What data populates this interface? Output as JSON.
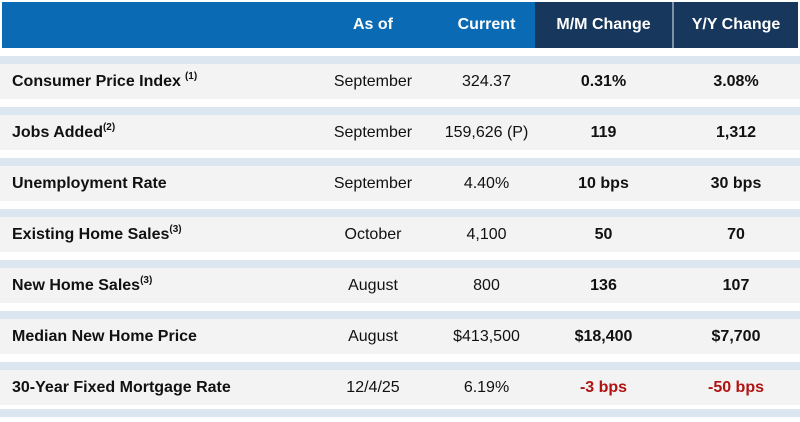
{
  "table": {
    "header": {
      "label": "",
      "as_of": "As of",
      "current": "Current",
      "mm": "M/M Change",
      "yy": "Y/Y Change"
    },
    "rows": [
      {
        "label": "Consumer Price Index",
        "footnote": "(1)",
        "footnote_gap": true,
        "as_of": "September",
        "current": "324.37",
        "mm": "0.31%",
        "yy": "3.08%",
        "negative": false
      },
      {
        "label": "Jobs Added",
        "footnote": "(2)",
        "footnote_gap": false,
        "as_of": "September",
        "current": "159,626 (P)",
        "mm": "119",
        "yy": "1,312",
        "negative": false
      },
      {
        "label": "Unemployment Rate",
        "footnote": "",
        "footnote_gap": false,
        "as_of": "September",
        "current": "4.40%",
        "mm": "10 bps",
        "yy": "30 bps",
        "negative": false
      },
      {
        "label": "Existing Home Sales",
        "footnote": "(3)",
        "footnote_gap": false,
        "as_of": "October",
        "current": "4,100",
        "mm": "50",
        "yy": "70",
        "negative": false
      },
      {
        "label": "New Home Sales",
        "footnote": "(3)",
        "footnote_gap": false,
        "as_of": "August",
        "current": "800",
        "mm": "136",
        "yy": "107",
        "negative": false
      },
      {
        "label": "Median New Home Price",
        "footnote": "",
        "footnote_gap": false,
        "as_of": "August",
        "current": "$413,500",
        "mm": "$18,400",
        "yy": "$7,700",
        "negative": false
      },
      {
        "label": "30-Year Fixed Mortgage Rate",
        "footnote": "",
        "footnote_gap": false,
        "as_of": "12/4/25",
        "current": "6.19%",
        "mm": "-3 bps",
        "yy": "-50 bps",
        "negative": true
      }
    ],
    "colors": {
      "header_blue": "#0a6ab4",
      "header_navy": "#17375d",
      "separator_light_blue": "#dce6f1",
      "row_background": "#f3f3f3",
      "negative_red": "#b01311",
      "header_text": "#ffffff",
      "body_text": "#111111"
    }
  },
  "chart_data": {
    "type": "table",
    "title": "",
    "columns": [
      "",
      "As of",
      "Current",
      "M/M Change",
      "Y/Y Change"
    ],
    "rows": [
      [
        "Consumer Price Index (1)",
        "September",
        "324.37",
        "0.31%",
        "3.08%"
      ],
      [
        "Jobs Added(2)",
        "September",
        "159,626 (P)",
        "119",
        "1,312"
      ],
      [
        "Unemployment Rate",
        "September",
        "4.40%",
        "10 bps",
        "30 bps"
      ],
      [
        "Existing Home Sales(3)",
        "October",
        "4,100",
        "50",
        "70"
      ],
      [
        "New Home Sales(3)",
        "August",
        "800",
        "136",
        "107"
      ],
      [
        "Median New Home Price",
        "August",
        "$413,500",
        "$18,400",
        "$7,700"
      ],
      [
        "30-Year Fixed Mortgage Rate",
        "12/4/25",
        "6.19%",
        "-3 bps",
        "-50 bps"
      ]
    ],
    "notes": "Last row M/M and Y/Y changes shown in red (negative values)."
  }
}
